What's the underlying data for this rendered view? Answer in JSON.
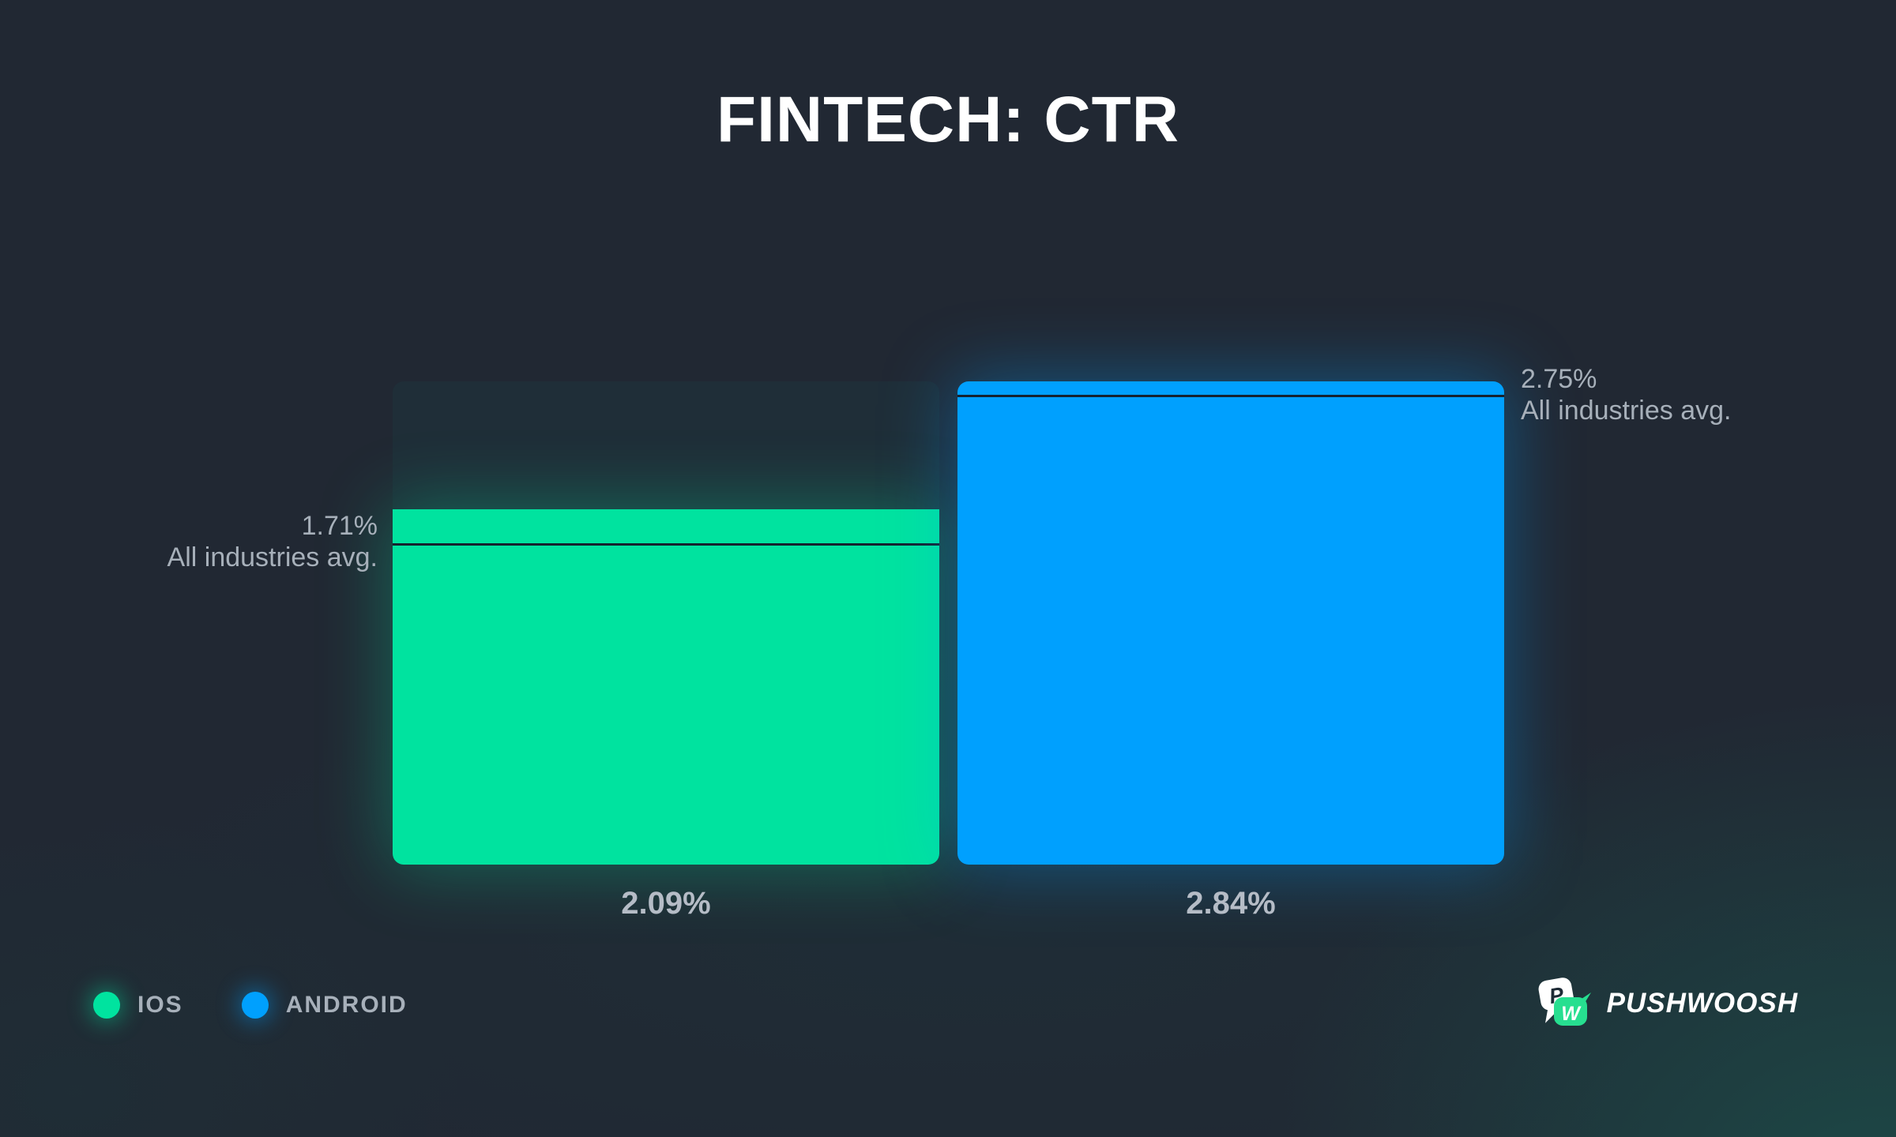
{
  "chart_data": {
    "type": "bar",
    "title": "FINTECH: CTR",
    "categories": [
      "IOS",
      "ANDROID"
    ],
    "series": [
      {
        "name": "CTR",
        "values": [
          2.09,
          2.84
        ]
      }
    ],
    "value_labels": [
      "2.09%",
      "2.84%"
    ],
    "benchmarks": [
      {
        "category": "IOS",
        "value": 1.71,
        "label": "1.71%",
        "sublabel": "All industries avg."
      },
      {
        "category": "ANDROID",
        "value": 2.75,
        "label": "2.75%",
        "sublabel": "All industries avg."
      }
    ],
    "ylim": [
      0,
      2.84
    ],
    "grid": false,
    "bar_colors": [
      "#00E39F",
      "#00A0FE"
    ],
    "track_color": "#1F2E38",
    "legend_position": "bottom-left"
  },
  "legend": {
    "items": [
      {
        "label": "IOS",
        "color": "#00E39F"
      },
      {
        "label": "ANDROID",
        "color": "#00A0FE"
      }
    ]
  },
  "branding": {
    "name": "PUSHWOOSH",
    "icon": "pushwoosh-logo",
    "bubble_letters": [
      "P",
      "W"
    ],
    "bubble_colors": [
      "#FFFFFF",
      "#27DF90"
    ]
  },
  "colors": {
    "background": "#212833",
    "title_text": "#FFFFFF",
    "muted_text": "#A7B0BA",
    "value_text": "#B5BCC6",
    "benchmark_line": "#16222E",
    "corner_glow": "#1D5F54"
  }
}
